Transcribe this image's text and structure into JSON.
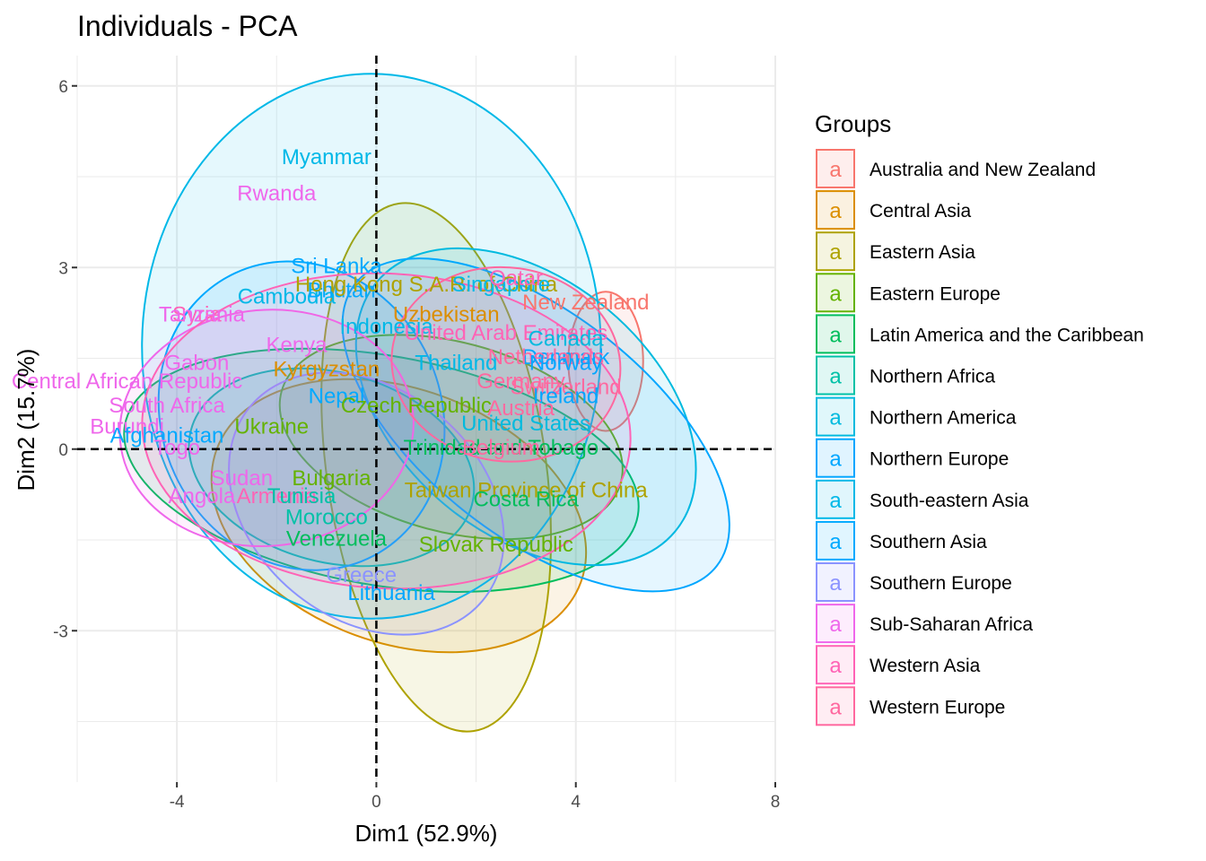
{
  "chart_data": {
    "type": "scatter",
    "title": "Individuals - PCA",
    "xlabel": "Dim1 (52.9%)",
    "ylabel": "Dim2 (15.7%)",
    "xlim": [
      -6,
      8
    ],
    "ylim": [
      -5.5,
      6.5
    ],
    "xticks": [
      -4,
      0,
      4,
      8
    ],
    "xtick_labels": [
      "-4",
      "0",
      "4",
      "8"
    ],
    "yticks": [
      -3,
      0,
      3,
      6
    ],
    "ytick_labels": [
      "-3",
      "0",
      "3",
      "6"
    ],
    "grid": true,
    "reference_lines": {
      "x": 0,
      "y": 0,
      "style": "dashed"
    },
    "legend": {
      "title": "Groups",
      "position": "right",
      "glyph": "a"
    },
    "groups": [
      {
        "name": "Australia and New Zealand",
        "color": "#F8766D",
        "ellipse": {
          "cx": 4.6,
          "cy": 1.45,
          "rx": 0.75,
          "ry": 1.15,
          "angle": 0
        }
      },
      {
        "name": "Central Asia",
        "color": "#DB8E00",
        "ellipse": {
          "cx": 0.45,
          "cy": -1.1,
          "rx": 2.55,
          "ry": 3.2,
          "angle": 70
        }
      },
      {
        "name": "Eastern Asia",
        "color": "#AEA200",
        "ellipse": {
          "cx": 1.2,
          "cy": -0.3,
          "rx": 2.2,
          "ry": 4.4,
          "angle": 8
        }
      },
      {
        "name": "Eastern Europe",
        "color": "#64B200",
        "ellipse": {
          "cx": 1.5,
          "cy": 0.2,
          "rx": 1.9,
          "ry": 2.9,
          "angle": 75
        }
      },
      {
        "name": "Latin America and the Caribbean",
        "color": "#00BD5C",
        "ellipse": {
          "cx": 0.1,
          "cy": -0.35,
          "rx": 2.3,
          "ry": 4.3,
          "angle": 80
        }
      },
      {
        "name": "Northern Africa",
        "color": "#00C1A7",
        "ellipse": {
          "cx": -0.9,
          "cy": -0.3,
          "rx": 1.9,
          "ry": 2.4,
          "angle": 75
        }
      },
      {
        "name": "Northern America",
        "color": "#00BADE",
        "ellipse": {
          "cx": 3.0,
          "cy": 0.7,
          "rx": 3.9,
          "ry": 2.1,
          "angle": -40
        }
      },
      {
        "name": "Northern Europe",
        "color": "#00A6FF",
        "ellipse": {
          "cx": 3.2,
          "cy": 0.4,
          "rx": 4.6,
          "ry": 1.85,
          "angle": -38
        }
      },
      {
        "name": "South-eastern Asia",
        "color": "#00B8E7",
        "ellipse": {
          "cx": -0.1,
          "cy": 1.7,
          "rx": 4.6,
          "ry": 4.5,
          "angle": 0
        }
      },
      {
        "name": "Southern Asia",
        "color": "#00A9FF",
        "ellipse": {
          "cx": -1.5,
          "cy": 0.55,
          "rx": 2.8,
          "ry": 2.6,
          "angle": 25
        }
      },
      {
        "name": "Southern Europe",
        "color": "#8B93FF",
        "ellipse": {
          "cx": -0.2,
          "cy": -0.9,
          "rx": 2.3,
          "ry": 2.5,
          "angle": 50
        }
      },
      {
        "name": "Sub-Saharan Africa",
        "color": "#EF67EB",
        "ellipse": {
          "cx": -2.2,
          "cy": 0.35,
          "rx": 2.95,
          "ry": 1.95,
          "angle": 5
        }
      },
      {
        "name": "Western Asia",
        "color": "#FF63B6",
        "ellipse": {
          "cx": 0.2,
          "cy": 0.3,
          "rx": 4.9,
          "ry": 2.6,
          "angle": -3
        }
      },
      {
        "name": "Western Europe",
        "color": "#FF689F",
        "ellipse": {
          "cx": 2.6,
          "cy": 1.4,
          "rx": 2.3,
          "ry": 1.6,
          "angle": -8
        }
      }
    ],
    "points": [
      {
        "label": "Myanmar",
        "group": "South-eastern Asia",
        "x": -1.0,
        "y": 4.8
      },
      {
        "label": "Rwanda",
        "group": "Sub-Saharan Africa",
        "x": -2.0,
        "y": 4.2
      },
      {
        "label": "Sri Lanka",
        "group": "Southern Asia",
        "x": -0.8,
        "y": 3.0
      },
      {
        "label": "Cambodia",
        "group": "South-eastern Asia",
        "x": -1.8,
        "y": 2.5
      },
      {
        "label": "Bhutan",
        "group": "Southern Asia",
        "x": -0.7,
        "y": 2.6
      },
      {
        "label": "Hong Kong S.A.R. of China",
        "group": "Eastern Asia",
        "x": 1.0,
        "y": 2.7
      },
      {
        "label": "Singapore",
        "group": "South-eastern Asia",
        "x": 2.5,
        "y": 2.7
      },
      {
        "label": "Qatar",
        "group": "Western Asia",
        "x": 2.8,
        "y": 2.8
      },
      {
        "label": "New Zealand",
        "group": "Australia and New Zealand",
        "x": 4.2,
        "y": 2.4
      },
      {
        "label": "Syria",
        "group": "Western Asia",
        "x": -3.6,
        "y": 2.2
      },
      {
        "label": "Tanzania",
        "group": "Sub-Saharan Africa",
        "x": -3.5,
        "y": 2.2
      },
      {
        "label": "Indonesia",
        "group": "South-eastern Asia",
        "x": 0.2,
        "y": 2.0
      },
      {
        "label": "Uzbekistan",
        "group": "Central Asia",
        "x": 1.4,
        "y": 2.2
      },
      {
        "label": "Kenya",
        "group": "Sub-Saharan Africa",
        "x": -1.6,
        "y": 1.7
      },
      {
        "label": "United Arab Emirates",
        "group": "Western Asia",
        "x": 2.6,
        "y": 1.9
      },
      {
        "label": "Thailand",
        "group": "South-eastern Asia",
        "x": 1.6,
        "y": 1.4
      },
      {
        "label": "Denmark",
        "group": "Northern Europe",
        "x": 3.8,
        "y": 1.5
      },
      {
        "label": "Netherlands",
        "group": "Western Europe",
        "x": 3.4,
        "y": 1.5
      },
      {
        "label": "Norway",
        "group": "Northern Europe",
        "x": 3.8,
        "y": 1.4
      },
      {
        "label": "Canada",
        "group": "Northern America",
        "x": 3.8,
        "y": 1.8
      },
      {
        "label": "Switzerland",
        "group": "Western Europe",
        "x": 3.8,
        "y": 1.0
      },
      {
        "label": "Germany",
        "group": "Western Europe",
        "x": 2.9,
        "y": 1.1
      },
      {
        "label": "Ireland",
        "group": "Northern Europe",
        "x": 3.8,
        "y": 0.85
      },
      {
        "label": "Kyrgyzstan",
        "group": "Central Asia",
        "x": -1.0,
        "y": 1.3
      },
      {
        "label": "Gabon",
        "group": "Sub-Saharan Africa",
        "x": -3.6,
        "y": 1.4
      },
      {
        "label": "Central African Republic",
        "group": "Sub-Saharan Africa",
        "x": -5.0,
        "y": 1.1
      },
      {
        "label": "South Africa",
        "group": "Sub-Saharan Africa",
        "x": -4.2,
        "y": 0.7
      },
      {
        "label": "Nepal",
        "group": "Southern Asia",
        "x": -0.8,
        "y": 0.85
      },
      {
        "label": "Czech Republic",
        "group": "Eastern Europe",
        "x": 0.8,
        "y": 0.7
      },
      {
        "label": "Austria",
        "group": "Western Europe",
        "x": 2.9,
        "y": 0.65
      },
      {
        "label": "United States",
        "group": "Northern America",
        "x": 3.0,
        "y": 0.4
      },
      {
        "label": "Burundi",
        "group": "Sub-Saharan Africa",
        "x": -5.0,
        "y": 0.35
      },
      {
        "label": "Afghanistan",
        "group": "Southern Asia",
        "x": -4.2,
        "y": 0.2
      },
      {
        "label": "Ukraine",
        "group": "Eastern Europe",
        "x": -2.1,
        "y": 0.35
      },
      {
        "label": "Togo",
        "group": "Sub-Saharan Africa",
        "x": -4.0,
        "y": 0.0
      },
      {
        "label": "Trinidad and Tobago",
        "group": "Latin America and the Caribbean",
        "x": 2.5,
        "y": 0.0
      },
      {
        "label": "Belgium",
        "group": "Western Europe",
        "x": 2.5,
        "y": 0.0
      },
      {
        "label": "Sudan",
        "group": "Sub-Saharan Africa",
        "x": -2.7,
        "y": -0.5
      },
      {
        "label": "Bulgaria",
        "group": "Eastern Europe",
        "x": -0.9,
        "y": -0.5
      },
      {
        "label": "Angola",
        "group": "Sub-Saharan Africa",
        "x": -3.5,
        "y": -0.8
      },
      {
        "label": "Armenia",
        "group": "Western Asia",
        "x": -2.0,
        "y": -0.8
      },
      {
        "label": "Tunisia",
        "group": "Northern Africa",
        "x": -1.5,
        "y": -0.8
      },
      {
        "label": "Taiwan Province of China",
        "group": "Eastern Asia",
        "x": 3.0,
        "y": -0.7
      },
      {
        "label": "Costa Rica",
        "group": "Latin America and the Caribbean",
        "x": 3.0,
        "y": -0.85
      },
      {
        "label": "Morocco",
        "group": "Northern Africa",
        "x": -1.0,
        "y": -1.15
      },
      {
        "label": "Venezuela",
        "group": "Latin America and the Caribbean",
        "x": -0.8,
        "y": -1.5
      },
      {
        "label": "Slovak Republic",
        "group": "Eastern Europe",
        "x": 2.4,
        "y": -1.6
      },
      {
        "label": "Greece",
        "group": "Southern Europe",
        "x": -0.3,
        "y": -2.1
      },
      {
        "label": "Lithuania",
        "group": "Northern Europe",
        "x": 0.3,
        "y": -2.4
      }
    ]
  }
}
